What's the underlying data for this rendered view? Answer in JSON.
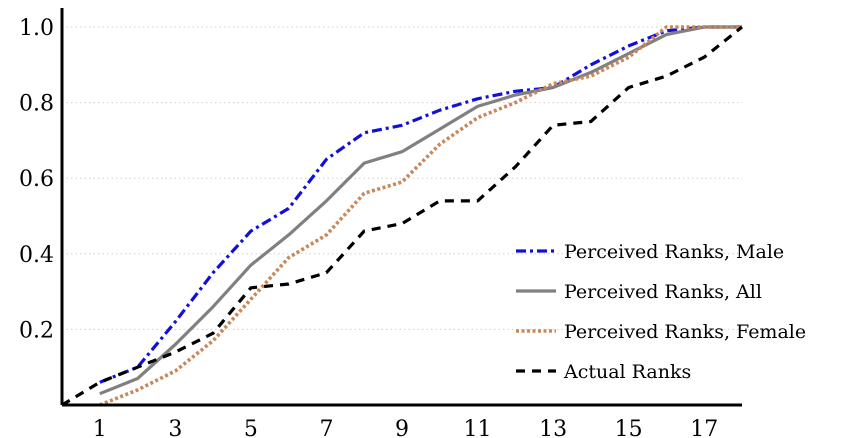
{
  "chart_data": {
    "type": "line",
    "title": "",
    "xlabel": "",
    "ylabel": "",
    "xlim": [
      0,
      18
    ],
    "ylim": [
      0,
      1.0
    ],
    "x_ticks": [
      1,
      3,
      5,
      7,
      9,
      11,
      13,
      15,
      17
    ],
    "y_ticks": [
      0.2,
      0.4,
      0.6,
      0.8,
      1.0
    ],
    "y_tick_labels": [
      "0.2",
      "0.4",
      "0.6",
      "0.8",
      "1.0"
    ],
    "grid": "horizontal-dotted",
    "legend_position": "bottom-right",
    "series": [
      {
        "name": "Perceived Ranks, Male",
        "color": "#1010d8",
        "style": "dashdot",
        "x": [
          1,
          2,
          3,
          4,
          5,
          6,
          7,
          8,
          9,
          10,
          11,
          12,
          13,
          14,
          15,
          16,
          17,
          18
        ],
        "y": [
          0.06,
          0.1,
          0.22,
          0.35,
          0.46,
          0.52,
          0.65,
          0.72,
          0.74,
          0.78,
          0.81,
          0.83,
          0.84,
          0.9,
          0.95,
          0.99,
          1.0,
          1.0
        ]
      },
      {
        "name": "Perceived Ranks, All",
        "color": "#808080",
        "style": "solid",
        "x": [
          1,
          2,
          3,
          4,
          5,
          6,
          7,
          8,
          9,
          10,
          11,
          12,
          13,
          14,
          15,
          16,
          17,
          18
        ],
        "y": [
          0.03,
          0.07,
          0.16,
          0.26,
          0.37,
          0.45,
          0.54,
          0.64,
          0.67,
          0.73,
          0.79,
          0.82,
          0.84,
          0.88,
          0.93,
          0.98,
          1.0,
          1.0
        ]
      },
      {
        "name": "Perceived Ranks, Female",
        "color": "#c8885a",
        "style": "dotted",
        "x": [
          1,
          2,
          3,
          4,
          5,
          6,
          7,
          8,
          9,
          10,
          11,
          12,
          13,
          14,
          15,
          16,
          17,
          18
        ],
        "y": [
          0.0,
          0.04,
          0.09,
          0.17,
          0.28,
          0.39,
          0.45,
          0.56,
          0.59,
          0.69,
          0.76,
          0.8,
          0.85,
          0.87,
          0.92,
          1.0,
          1.0,
          1.0
        ]
      },
      {
        "name": "Actual Ranks",
        "color": "#000000",
        "style": "dashed",
        "x": [
          0,
          1,
          2,
          3,
          4,
          5,
          6,
          7,
          8,
          9,
          10,
          11,
          12,
          13,
          14,
          15,
          16,
          17,
          18
        ],
        "y": [
          0.0,
          0.06,
          0.1,
          0.14,
          0.19,
          0.31,
          0.32,
          0.35,
          0.46,
          0.48,
          0.54,
          0.54,
          0.63,
          0.74,
          0.75,
          0.84,
          0.87,
          0.92,
          1.0
        ]
      }
    ]
  }
}
